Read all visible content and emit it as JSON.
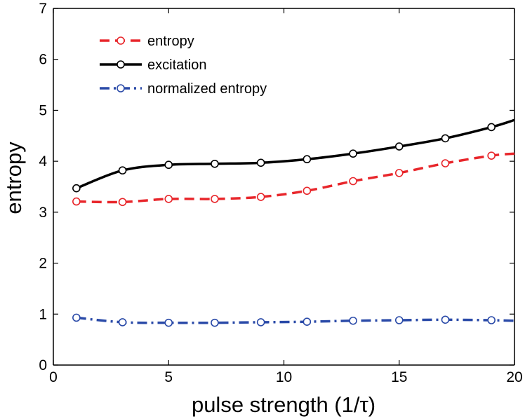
{
  "chart_data": {
    "type": "line",
    "title": "",
    "xlabel": "pulse strength (1/τ)",
    "ylabel": "entropy",
    "xlim": [
      0,
      20
    ],
    "ylim": [
      0,
      7
    ],
    "xticks": [
      "0",
      "5",
      "10",
      "15",
      "20"
    ],
    "yticks": [
      "0",
      "1",
      "2",
      "3",
      "4",
      "5",
      "6",
      "7"
    ],
    "grid": false,
    "legend_position": "top-left",
    "x": [
      1,
      3,
      5,
      7,
      9,
      11,
      13,
      15,
      17,
      19
    ],
    "series": [
      {
        "name": "entropy",
        "color": "#e8262b",
        "style": "dashed",
        "marker": "circle",
        "values": [
          3.21,
          3.2,
          3.26,
          3.26,
          3.3,
          3.42,
          3.61,
          3.77,
          3.96,
          4.11
        ],
        "end": [
          20,
          4.15
        ]
      },
      {
        "name": "excitation",
        "color": "#000000",
        "style": "solid",
        "marker": "circle",
        "values": [
          3.47,
          3.82,
          3.93,
          3.95,
          3.97,
          4.04,
          4.15,
          4.29,
          4.45,
          4.67
        ],
        "end": [
          20,
          4.81
        ]
      },
      {
        "name": "normalized entropy",
        "color": "#2a4aa8",
        "style": "dashdot",
        "marker": "circle",
        "values": [
          0.93,
          0.84,
          0.83,
          0.83,
          0.84,
          0.85,
          0.87,
          0.88,
          0.89,
          0.88
        ],
        "end": [
          20,
          0.87
        ]
      }
    ]
  }
}
